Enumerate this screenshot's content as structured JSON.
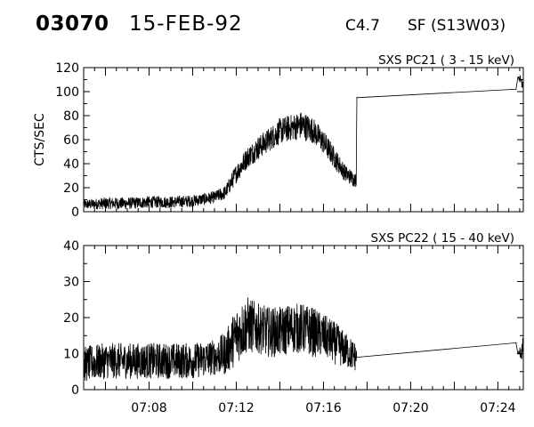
{
  "header": {
    "event_id": "03070",
    "date": "15-FEB-92",
    "goes_class": "C4.7",
    "location": "SF (S13W03)"
  },
  "chart_data": [
    {
      "type": "line",
      "title": "SXS PC21  (  3 - 15 keV)",
      "ylabel": "CTS/SEC",
      "xlabel": "",
      "ylim": [
        0,
        120
      ],
      "yticks": [
        0,
        20,
        40,
        60,
        80,
        100,
        120
      ],
      "xlim": [
        "07:05",
        "07:25:10"
      ],
      "x_ticklabels": [],
      "grid": false,
      "series": [
        {
          "x": [
            "07:05:00",
            "07:06:00",
            "07:07:00",
            "07:08:00",
            "07:09:00",
            "07:10:00",
            "07:11:00",
            "07:11:30",
            "07:12:00",
            "07:12:30",
            "07:13:00",
            "07:13:30",
            "07:14:00",
            "07:14:30",
            "07:15:00",
            "07:15:30",
            "07:16:00",
            "07:16:30",
            "07:17:00",
            "07:17:30",
            "07:17:32",
            "07:24:50",
            "07:24:55",
            "07:25:10"
          ],
          "y": [
            6,
            7,
            7,
            8,
            8,
            9,
            12,
            16,
            32,
            45,
            53,
            60,
            67,
            70,
            72,
            68,
            58,
            45,
            32,
            26,
            95,
            102,
            112,
            108
          ],
          "noise": [
            4,
            5,
            5,
            5,
            5,
            5,
            5,
            6,
            8,
            9,
            10,
            10,
            11,
            11,
            12,
            11,
            10,
            9,
            7,
            6,
            0,
            0,
            0,
            8
          ]
        }
      ]
    },
    {
      "type": "line",
      "title": "SXS PC22  ( 15 - 40 keV)",
      "ylabel": "",
      "xlabel": "",
      "ylim": [
        0,
        40
      ],
      "yticks": [
        0,
        10,
        20,
        30,
        40
      ],
      "xlim": [
        "07:05",
        "07:25:10"
      ],
      "x_ticklabels": [
        "07:08",
        "07:12",
        "07:16",
        "07:20",
        "07:24"
      ],
      "grid": false,
      "series": [
        {
          "x": [
            "07:05:00",
            "07:06:00",
            "07:07:00",
            "07:08:00",
            "07:09:00",
            "07:10:00",
            "07:11:00",
            "07:11:30",
            "07:12:00",
            "07:12:30",
            "07:13:00",
            "07:13:30",
            "07:14:00",
            "07:14:30",
            "07:15:00",
            "07:15:30",
            "07:16:00",
            "07:16:30",
            "07:17:00",
            "07:17:30",
            "07:17:32",
            "07:24:50",
            "07:24:55",
            "07:25:10"
          ],
          "y": [
            7,
            8,
            8,
            8,
            8,
            8,
            9,
            10,
            15,
            18,
            17,
            16,
            16,
            17,
            17,
            16,
            15,
            13,
            11,
            9,
            9,
            13,
            10,
            11
          ],
          "noise": [
            5,
            5,
            5,
            5,
            5,
            5,
            5,
            6,
            8,
            8,
            7,
            7,
            7,
            7,
            7,
            7,
            6,
            6,
            5,
            4,
            0,
            0,
            0,
            4
          ]
        }
      ]
    }
  ]
}
